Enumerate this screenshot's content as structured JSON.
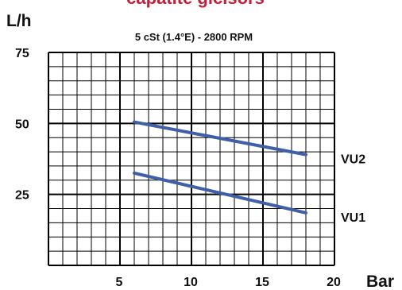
{
  "colors": {
    "title": "#c41e3a",
    "series": "#3f5fa8",
    "grid": "#000000"
  },
  "chart_data": {
    "type": "line",
    "title": "capatite giclsors",
    "subtitle": "5 cSt (1.4°E) - 2800 RPM",
    "ylabel": "L/h",
    "xlabel": "Bar",
    "xlim": [
      0,
      20
    ],
    "ylim": [
      0,
      75
    ],
    "x_ticks": [
      5,
      10,
      15,
      20
    ],
    "y_ticks": [
      25,
      50,
      75
    ],
    "grid": true,
    "series": [
      {
        "name": "VU2",
        "x": [
          6,
          18
        ],
        "y": [
          50.5,
          39
        ]
      },
      {
        "name": "VU1",
        "x": [
          6,
          18
        ],
        "y": [
          32.5,
          18.5
        ]
      }
    ]
  }
}
